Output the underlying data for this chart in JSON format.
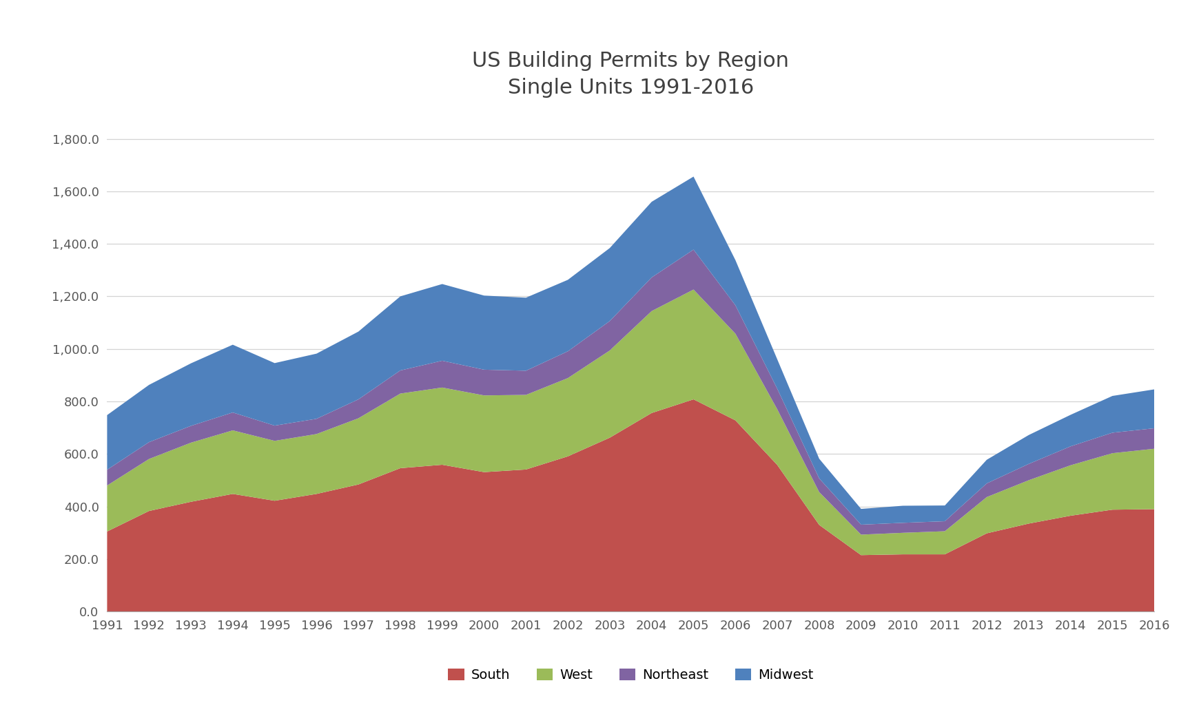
{
  "title_line1": "US Building Permits by Region",
  "title_line2": "Single Units 1991-2016",
  "years": [
    1991,
    1992,
    1993,
    1994,
    1995,
    1996,
    1997,
    1998,
    1999,
    2000,
    2001,
    2002,
    2003,
    2004,
    2005,
    2006,
    2007,
    2008,
    2009,
    2010,
    2011,
    2012,
    2013,
    2014,
    2015,
    2016
  ],
  "south": [
    305,
    383,
    418,
    448,
    422,
    448,
    484,
    546,
    559,
    531,
    541,
    591,
    662,
    756,
    808,
    728,
    558,
    330,
    215,
    218,
    218,
    298,
    335,
    365,
    388,
    390
  ],
  "west": [
    175,
    198,
    225,
    242,
    228,
    228,
    252,
    284,
    294,
    292,
    284,
    298,
    332,
    388,
    418,
    330,
    212,
    125,
    78,
    82,
    88,
    138,
    165,
    192,
    215,
    230
  ],
  "northeast": [
    60,
    64,
    64,
    68,
    58,
    58,
    72,
    88,
    102,
    98,
    92,
    102,
    112,
    128,
    152,
    108,
    78,
    52,
    38,
    38,
    38,
    52,
    62,
    72,
    78,
    78
  ],
  "midwest": [
    208,
    218,
    238,
    258,
    238,
    248,
    258,
    282,
    292,
    282,
    278,
    272,
    278,
    288,
    278,
    172,
    112,
    75,
    60,
    65,
    60,
    90,
    110,
    120,
    140,
    148
  ],
  "colors": {
    "south": "#C0504D",
    "west": "#9BBB59",
    "northeast": "#8064A2",
    "midwest": "#4F81BD"
  },
  "ylim": [
    0,
    1900
  ],
  "yticks": [
    0,
    200,
    400,
    600,
    800,
    1000,
    1200,
    1400,
    1600,
    1800
  ],
  "background_color": "#FFFFFF",
  "grid_color": "#D3D3D3",
  "title_fontsize": 22,
  "tick_fontsize": 13,
  "legend_fontsize": 14
}
